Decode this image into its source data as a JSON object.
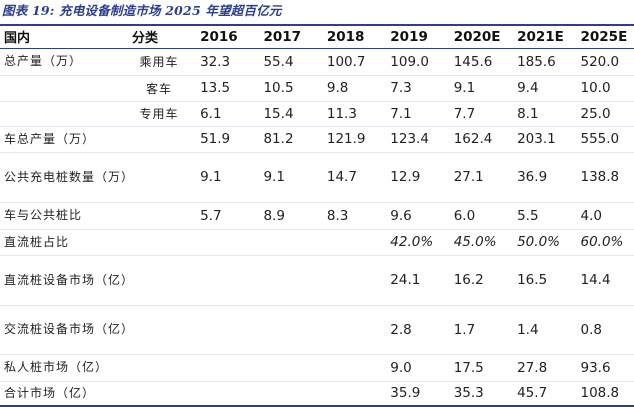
{
  "caption": "图表 19: 充电设备制造市场 2025 年望超百亿元",
  "header": {
    "col0": "国内",
    "col1": "分类",
    "years": [
      "2016",
      "2017",
      "2018",
      "2019",
      "2020E",
      "2021E",
      "2025E"
    ]
  },
  "rows": [
    {
      "label": "总产量（万）",
      "sub": "乘用车",
      "values": [
        "32.3",
        "55.4",
        "100.7",
        "109.0",
        "145.6",
        "185.6",
        "520.0"
      ]
    },
    {
      "label": "",
      "sub": "客车",
      "values": [
        "13.5",
        "10.5",
        "9.8",
        "7.3",
        "9.1",
        "9.4",
        "10.0"
      ]
    },
    {
      "label": "",
      "sub": "专用车",
      "values": [
        "6.1",
        "15.4",
        "11.3",
        "7.1",
        "7.7",
        "8.1",
        "25.0"
      ]
    },
    {
      "label": "车总产量（万）",
      "sub": "",
      "values": [
        "51.9",
        "81.2",
        "121.9",
        "123.4",
        "162.4",
        "203.1",
        "555.0"
      ]
    },
    {
      "label": "公共充电桩数量（万）",
      "sub": "",
      "values": [
        "9.1",
        "9.1",
        "14.7",
        "12.9",
        "27.1",
        "36.9",
        "138.8"
      ]
    },
    {
      "label": "车与公共桩比",
      "sub": "",
      "values": [
        "5.7",
        "8.9",
        "8.3",
        "9.6",
        "6.0",
        "5.5",
        "4.0"
      ]
    },
    {
      "label": "直流桩占比",
      "sub": "",
      "values": [
        "",
        "",
        "",
        "42.0%",
        "45.0%",
        "50.0%",
        "60.0%"
      ]
    },
    {
      "label": "直流桩设备市场（亿）",
      "sub": "",
      "values": [
        "",
        "",
        "",
        "24.1",
        "16.2",
        "16.5",
        "14.4"
      ]
    },
    {
      "label": "交流桩设备市场（亿）",
      "sub": "",
      "values": [
        "",
        "",
        "",
        "2.8",
        "1.7",
        "1.4",
        "0.8"
      ]
    },
    {
      "label": "私人桩市场（亿）",
      "sub": "",
      "values": [
        "",
        "",
        "",
        "9.0",
        "17.5",
        "27.8",
        "93.6"
      ]
    },
    {
      "label": "合计市场（亿）",
      "sub": "",
      "values": [
        "",
        "",
        "",
        "35.9",
        "35.3",
        "45.7",
        "108.8"
      ]
    }
  ]
}
